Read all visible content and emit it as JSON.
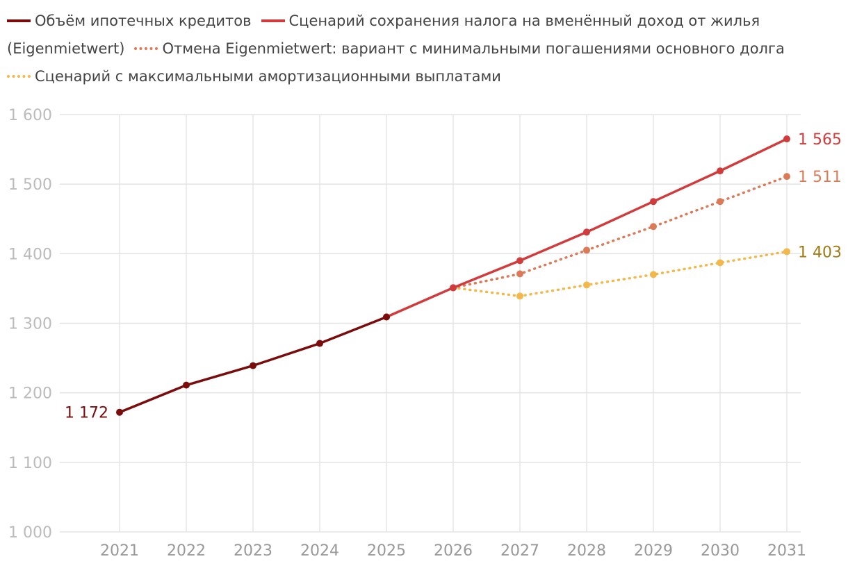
{
  "chart_data": {
    "type": "line",
    "title": "",
    "xlabel": "",
    "ylabel": "",
    "x": [
      2021,
      2022,
      2023,
      2024,
      2025,
      2026,
      2027,
      2028,
      2029,
      2030,
      2031
    ],
    "ylim": [
      1000,
      1600
    ],
    "yticks": [
      1000,
      1100,
      1200,
      1300,
      1400,
      1500,
      1600
    ],
    "ytick_labels": [
      "1 000",
      "1 100",
      "1 200",
      "1 300",
      "1 400",
      "1 500",
      "1 600"
    ],
    "xtick_labels": [
      "2021",
      "2022",
      "2023",
      "2024",
      "2025",
      "2026",
      "2027",
      "2028",
      "2029",
      "2030",
      "2031"
    ],
    "grid": true,
    "legend_position": "top",
    "series": [
      {
        "name": "Объём ипотечных кредитов",
        "style": "solid",
        "color": "#7a0c0c",
        "x": [
          2021,
          2022,
          2023,
          2024,
          2025
        ],
        "y": [
          1172,
          1211,
          1239,
          1271,
          1309
        ],
        "label_text": "1 172",
        "label_side": "start"
      },
      {
        "name": "Сценарий сохранения налога на вменённый доход от жилья (Eigenmietwert)",
        "style": "solid",
        "color": "#d13b3b",
        "x": [
          2025,
          2026,
          2027,
          2028,
          2029,
          2030,
          2031
        ],
        "y": [
          1309,
          1351,
          1390,
          1431,
          1475,
          1519,
          1565
        ],
        "label_text": "1 565",
        "label_side": "end"
      },
      {
        "name": "Отмена Eigenmietwert: вариант с минимальными погашениями основного долга",
        "style": "dotted",
        "color": "#dc7a58",
        "x": [
          2026,
          2027,
          2028,
          2029,
          2030,
          2031
        ],
        "y": [
          1351,
          1371,
          1405,
          1439,
          1475,
          1511
        ],
        "label_text": "1 511",
        "label_side": "end"
      },
      {
        "name": "Сценарий с максимальными амортизационными выплатами",
        "style": "dotted",
        "color": "#f2b84b",
        "x": [
          2026,
          2027,
          2028,
          2029,
          2030,
          2031
        ],
        "y": [
          1351,
          1339,
          1355,
          1370,
          1387,
          1403
        ],
        "label_text": "1 403",
        "label_color": "#a37a12",
        "label_side": "end"
      }
    ]
  },
  "legend": {
    "rows": [
      [
        {
          "series": 0,
          "text": "Объём ипотечных кредитов"
        },
        {
          "series": 1,
          "text": "Сценарий сохранения налога на вменённый доход от жилья"
        }
      ],
      [
        {
          "series": -1,
          "text": "(Eigenmietwert)"
        },
        {
          "series": 2,
          "text": "Отмена Eigenmietwert: вариант с минимальными погашениями основного долга"
        }
      ],
      [
        {
          "series": 3,
          "text": "Сценарий с максимальными амортизационными выплатами"
        }
      ]
    ]
  }
}
